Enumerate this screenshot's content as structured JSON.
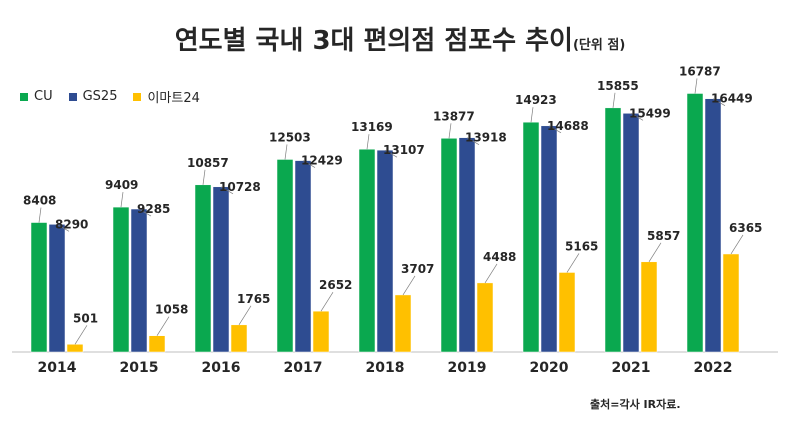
{
  "title": "연도별 국내 3대 편의점 점포수 추이",
  "unit_note": "(단위 점)",
  "source": "출처=각사 IR자료.",
  "chart_data": {
    "type": "bar",
    "categories": [
      "2014",
      "2015",
      "2016",
      "2017",
      "2018",
      "2019",
      "2020",
      "2021",
      "2022"
    ],
    "series": [
      {
        "name": "CU",
        "color": "#0aa84f",
        "values": [
          8408,
          9409,
          10857,
          12503,
          13169,
          13877,
          14923,
          15855,
          16787
        ]
      },
      {
        "name": "GS25",
        "color": "#2e4c91",
        "values": [
          8290,
          9285,
          10728,
          12429,
          13107,
          13918,
          14688,
          15499,
          16449
        ]
      },
      {
        "name": "이마트24",
        "color": "#ffc000",
        "values": [
          501,
          1058,
          1765,
          2652,
          3707,
          4488,
          5165,
          5857,
          6365
        ]
      }
    ],
    "legend_position": "top-left",
    "grid": false,
    "ylim": [
      0,
      19000
    ]
  }
}
